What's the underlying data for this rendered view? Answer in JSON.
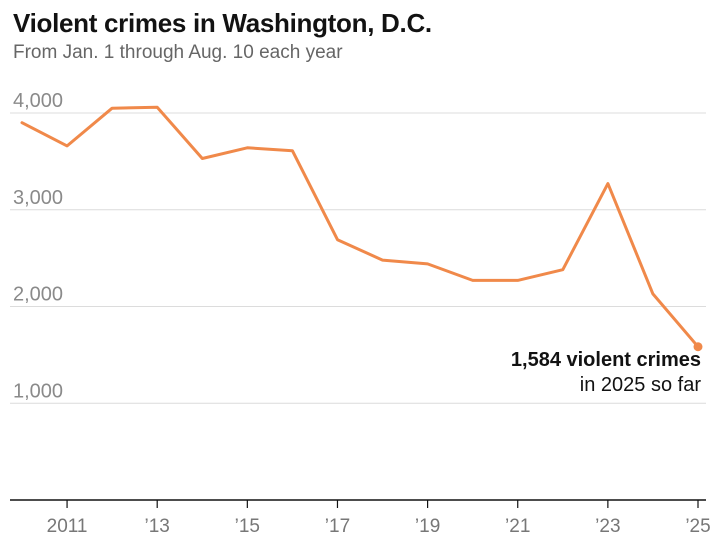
{
  "chart_data": {
    "type": "line",
    "title": "Violent crimes in Washington, D.C.",
    "subtitle": "From Jan. 1 through Aug. 10 each year",
    "x": [
      2010,
      2011,
      2012,
      2013,
      2014,
      2015,
      2016,
      2017,
      2018,
      2019,
      2020,
      2021,
      2022,
      2023,
      2024,
      2025
    ],
    "series": [
      {
        "values": [
          3900,
          3660,
          4050,
          4060,
          3530,
          3640,
          3610,
          2690,
          2480,
          2440,
          2270,
          2270,
          2380,
          3270,
          2130,
          1584
        ],
        "color": "#f0894a"
      }
    ],
    "yticks": [
      {
        "value": 1000,
        "label": "1,000"
      },
      {
        "value": 2000,
        "label": "2,000"
      },
      {
        "value": 3000,
        "label": "3,000"
      },
      {
        "value": 4000,
        "label": "4,000"
      }
    ],
    "xticks": [
      {
        "value": 2011,
        "label": "2011"
      },
      {
        "value": 2013,
        "label": "’13"
      },
      {
        "value": 2015,
        "label": "’15"
      },
      {
        "value": 2017,
        "label": "’17"
      },
      {
        "value": 2019,
        "label": "’19"
      },
      {
        "value": 2021,
        "label": "’21"
      },
      {
        "value": 2023,
        "label": "’23"
      },
      {
        "value": 2025,
        "label": "’25"
      }
    ],
    "ylim": [
      0,
      4000
    ],
    "xlim": [
      2010,
      2025
    ],
    "grid": true,
    "annotation": {
      "x": 2025,
      "y": 1584,
      "line1": "1,584 violent crimes",
      "line2": "in 2025 so far"
    }
  }
}
